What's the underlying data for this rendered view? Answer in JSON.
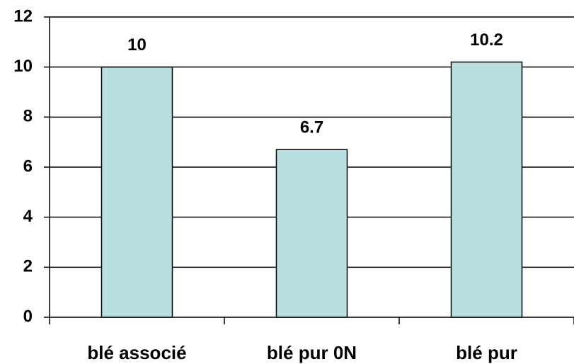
{
  "chart_data": {
    "type": "bar",
    "categories": [
      "blé associé",
      "blé pur 0N",
      "blé pur"
    ],
    "values": [
      10,
      6.7,
      10.2
    ],
    "color": "#b9dfe2",
    "ylim": [
      0,
      12
    ],
    "yticks": [
      0,
      2,
      4,
      6,
      8,
      10,
      12
    ],
    "grid": true
  }
}
